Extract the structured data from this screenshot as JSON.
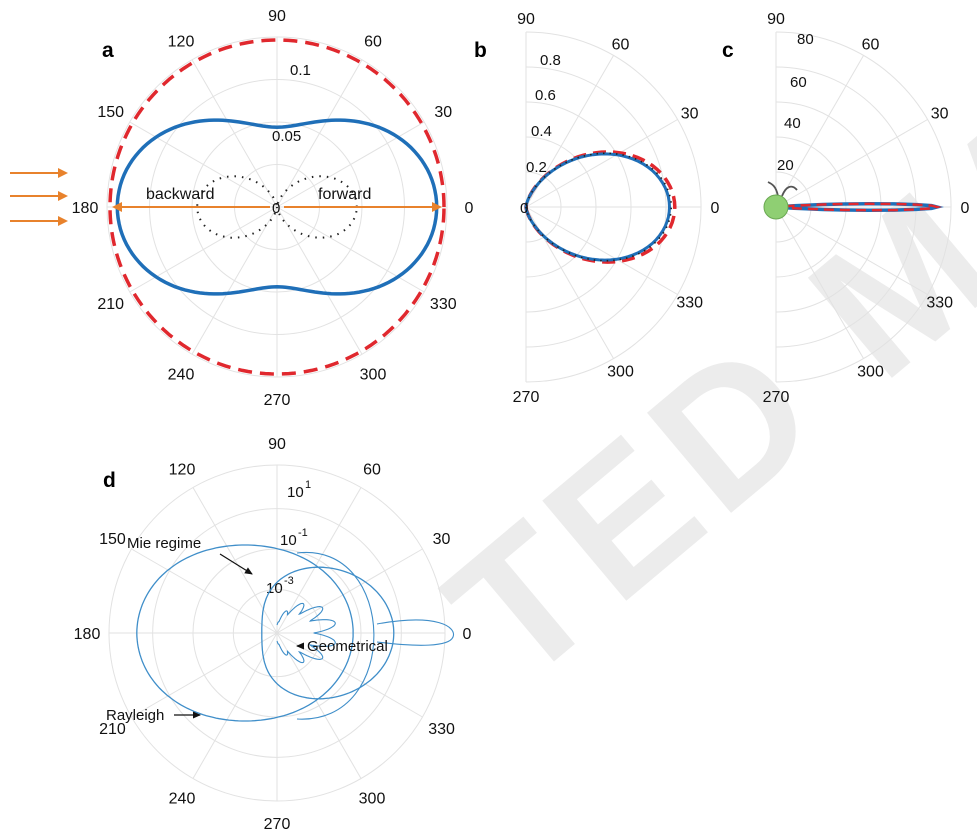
{
  "watermark": "TED MA",
  "chart_data": [
    {
      "panel": "a",
      "type": "polar",
      "angle_ticks": [
        "0",
        "30",
        "60",
        "90",
        "120",
        "150",
        "180",
        "210",
        "240",
        "270",
        "300",
        "330"
      ],
      "radial_ticks": [
        "0.05",
        "0.1"
      ],
      "rlim": [
        0,
        0.115
      ],
      "grid": true,
      "annotations": [
        "backward",
        "forward",
        "0"
      ],
      "series": [
        {
          "style": "dashed",
          "color": "#e0282e",
          "model": "circle",
          "r": 0.113
        },
        {
          "style": "solid",
          "color": "#1f6fb8",
          "model": "rayleigh_total",
          "r_min": 0.054,
          "r_max": 0.108
        },
        {
          "style": "dotted",
          "color": "#222222",
          "model": "cos2_lobes",
          "r_max": 0.054
        }
      ],
      "incident_arrows": 3
    },
    {
      "panel": "b",
      "type": "polar",
      "angle_ticks": [
        "0",
        "30",
        "60",
        "270",
        "300",
        "330",
        "90"
      ],
      "radial_ticks": [
        "0.2",
        "0.4",
        "0.6",
        "0.8"
      ],
      "rlim": [
        0,
        1.0
      ],
      "grid": true,
      "series": [
        {
          "style": "dashed",
          "color": "#e0282e",
          "model": "forward_lobe",
          "r_max": 0.85
        },
        {
          "style": "solid",
          "color": "#1f6fb8",
          "model": "forward_lobe",
          "r_max": 0.82
        },
        {
          "style": "dotted",
          "color": "#222222",
          "model": "forward_lobe",
          "r_max": 0.83
        }
      ]
    },
    {
      "panel": "c",
      "type": "polar",
      "angle_ticks": [
        "0",
        "30",
        "60",
        "90",
        "270",
        "300",
        "330"
      ],
      "radial_ticks": [
        "20",
        "40",
        "60",
        "80"
      ],
      "rlim": [
        0,
        100
      ],
      "grid": true,
      "series": [
        {
          "style": "solid",
          "color": "#1f6fb8",
          "model": "narrow_forward_lobe",
          "r_max": 92
        },
        {
          "style": "dashed",
          "color": "#e0282e",
          "model": "narrow_forward_lobe",
          "r_max": 92
        }
      ]
    },
    {
      "panel": "d",
      "type": "polar",
      "angle_ticks": [
        "0",
        "30",
        "60",
        "90",
        "120",
        "150",
        "180",
        "210",
        "240",
        "270",
        "300",
        "330"
      ],
      "radial_ticks": [
        "10",
        "-3",
        "10",
        "-1",
        "10",
        "1"
      ],
      "scale": "log",
      "rlim": [
        1e-05,
        100
      ],
      "grid": true,
      "annotations": [
        "Mie regime",
        "Geometrical",
        "Rayleigh"
      ],
      "series": [
        {
          "name": "Rayleigh",
          "style": "solid",
          "color": "#3f8ec9"
        },
        {
          "name": "Mie regime",
          "style": "solid",
          "color": "#3f8ec9"
        },
        {
          "name": "Geometrical",
          "style": "solid",
          "color": "#3f8ec9"
        }
      ]
    }
  ],
  "panels": {
    "a": {
      "letter": "a",
      "angles": [
        "90",
        "60",
        "30",
        "0",
        "330",
        "300",
        "270",
        "240",
        "210",
        "180",
        "150",
        "120"
      ],
      "rticks": [
        "0.05",
        "0.1"
      ],
      "center_label": "0",
      "backward": "backward",
      "forward": "forward"
    },
    "b": {
      "letter": "b",
      "angles": [
        "90",
        "60",
        "30",
        "0",
        "330",
        "300",
        "270"
      ],
      "rticks": [
        "0.2",
        "0.4",
        "0.6",
        "0.8"
      ],
      "center_label": "0"
    },
    "c": {
      "letter": "c",
      "angles": [
        "90",
        "60",
        "30",
        "0",
        "330",
        "300",
        "270"
      ],
      "rticks": [
        "20",
        "40",
        "60",
        "80"
      ]
    },
    "d": {
      "letter": "d",
      "angles": [
        "90",
        "60",
        "30",
        "0",
        "330",
        "300",
        "270",
        "240",
        "210",
        "180",
        "150",
        "120"
      ],
      "rtick_base": [
        "10",
        "10",
        "10"
      ],
      "rtick_exp": [
        "-3",
        "-1",
        "1"
      ],
      "mie": "Mie regime",
      "geom": "Geometrical",
      "rayleigh": "Rayleigh"
    }
  }
}
